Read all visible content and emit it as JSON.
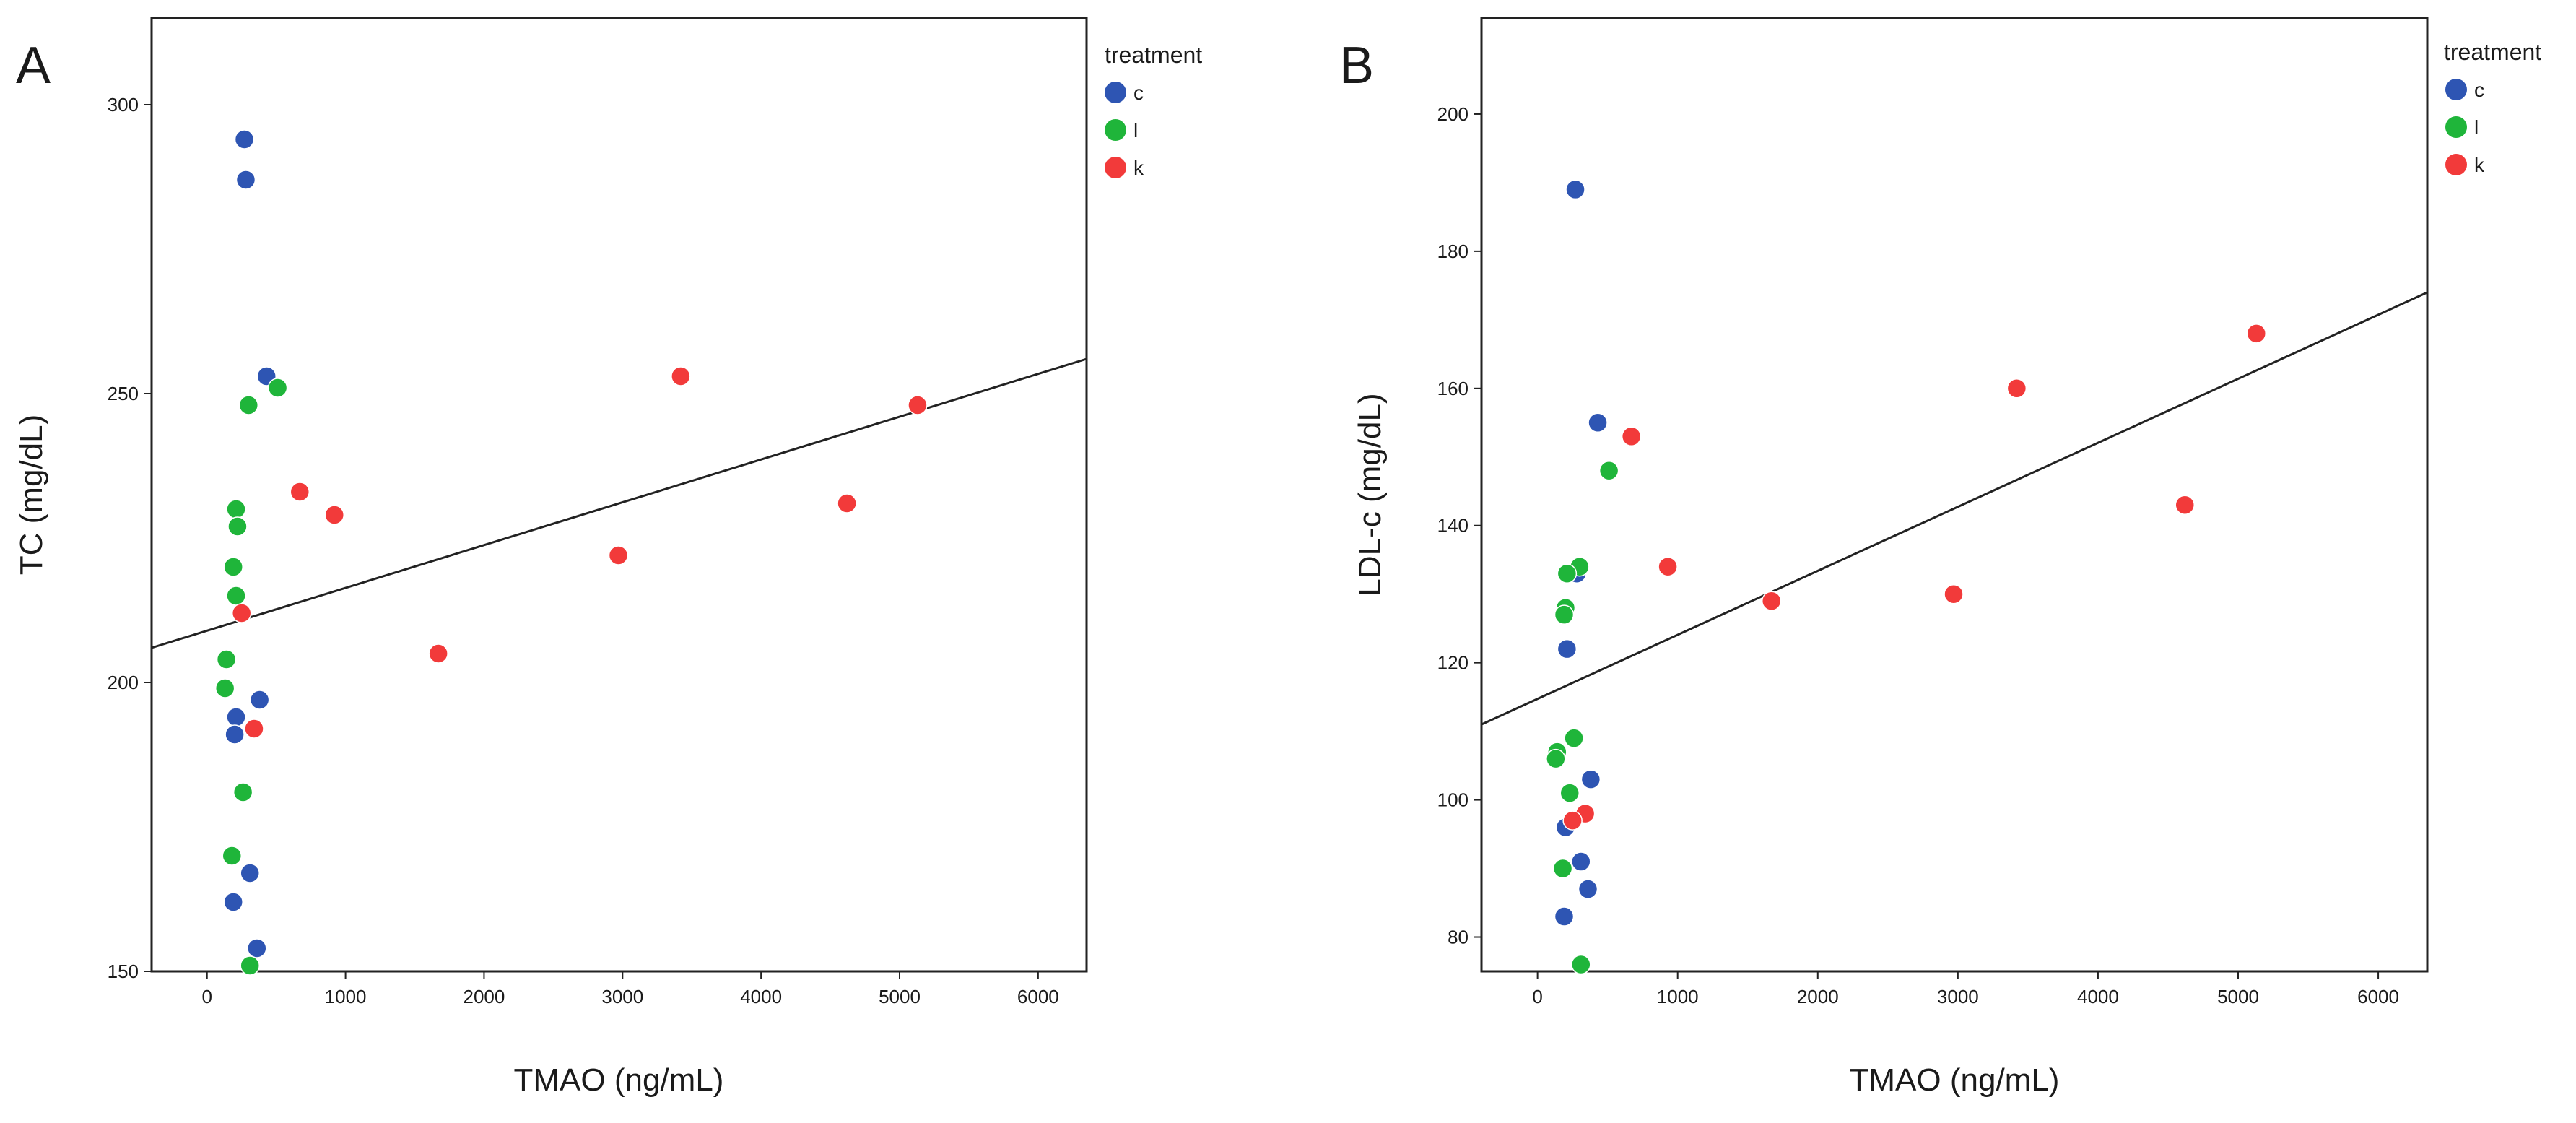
{
  "chart_data": [
    {
      "panel": "A",
      "type": "scatter",
      "xlabel": "TMAO (ng/mL)",
      "ylabel": "TC (mg/dL)",
      "xlim": [
        -400,
        6350
      ],
      "ylim": [
        150,
        315
      ],
      "xticks": [
        0,
        1000,
        2000,
        3000,
        4000,
        5000,
        6000
      ],
      "yticks": [
        150,
        200,
        250,
        300
      ],
      "grid": false,
      "legend": {
        "title": "treatment",
        "position": "right"
      },
      "series": [
        {
          "name": "c",
          "color": "#2e55b3",
          "points": [
            [
              270,
              294
            ],
            [
              280,
              287
            ],
            [
              430,
              253
            ],
            [
              380,
              197
            ],
            [
              210,
              194
            ],
            [
              200,
              191
            ],
            [
              310,
              167
            ],
            [
              190,
              162
            ],
            [
              360,
              154
            ]
          ]
        },
        {
          "name": "l",
          "color": "#1fb53a",
          "points": [
            [
              510,
              251
            ],
            [
              300,
              248
            ],
            [
              210,
              230
            ],
            [
              220,
              227
            ],
            [
              190,
              220
            ],
            [
              210,
              215
            ],
            [
              140,
              204
            ],
            [
              130,
              199
            ],
            [
              260,
              181
            ],
            [
              180,
              170
            ],
            [
              310,
              151
            ]
          ]
        },
        {
          "name": "k",
          "color": "#f23a3a",
          "points": [
            [
              3420,
              253
            ],
            [
              5130,
              248
            ],
            [
              670,
              233
            ],
            [
              4620,
              231
            ],
            [
              920,
              229
            ],
            [
              2970,
              222
            ],
            [
              250,
              212
            ],
            [
              1670,
              205
            ],
            [
              340,
              192
            ]
          ]
        }
      ],
      "regression_line": {
        "x": [
          -400,
          6350
        ],
        "y": [
          206,
          256
        ]
      }
    },
    {
      "panel": "B",
      "type": "scatter",
      "xlabel": "TMAO (ng/mL)",
      "ylabel": "LDL-c (mg/dL)",
      "xlim": [
        -400,
        6350
      ],
      "ylim": [
        75,
        214
      ],
      "xticks": [
        0,
        1000,
        2000,
        3000,
        4000,
        5000,
        6000
      ],
      "yticks": [
        80,
        100,
        120,
        140,
        160,
        180,
        200
      ],
      "grid": false,
      "legend": {
        "title": "treatment",
        "position": "right"
      },
      "series": [
        {
          "name": "c",
          "color": "#2e55b3",
          "points": [
            [
              270,
              189
            ],
            [
              430,
              155
            ],
            [
              280,
              133
            ],
            [
              210,
              122
            ],
            [
              380,
              103
            ],
            [
              200,
              96
            ],
            [
              310,
              91
            ],
            [
              360,
              87
            ],
            [
              190,
              83
            ]
          ]
        },
        {
          "name": "l",
          "color": "#1fb53a",
          "points": [
            [
              510,
              148
            ],
            [
              300,
              134
            ],
            [
              210,
              133
            ],
            [
              200,
              128
            ],
            [
              190,
              127
            ],
            [
              260,
              109
            ],
            [
              140,
              107
            ],
            [
              130,
              106
            ],
            [
              230,
              101
            ],
            [
              180,
              90
            ],
            [
              310,
              76
            ]
          ]
        },
        {
          "name": "k",
          "color": "#f23a3a",
          "points": [
            [
              3420,
              160
            ],
            [
              5130,
              168
            ],
            [
              670,
              153
            ],
            [
              4620,
              143
            ],
            [
              930,
              134
            ],
            [
              2970,
              130
            ],
            [
              1670,
              129
            ],
            [
              340,
              98
            ],
            [
              250,
              97
            ]
          ]
        }
      ],
      "regression_line": {
        "x": [
          -400,
          6350
        ],
        "y": [
          111,
          174
        ]
      }
    }
  ]
}
